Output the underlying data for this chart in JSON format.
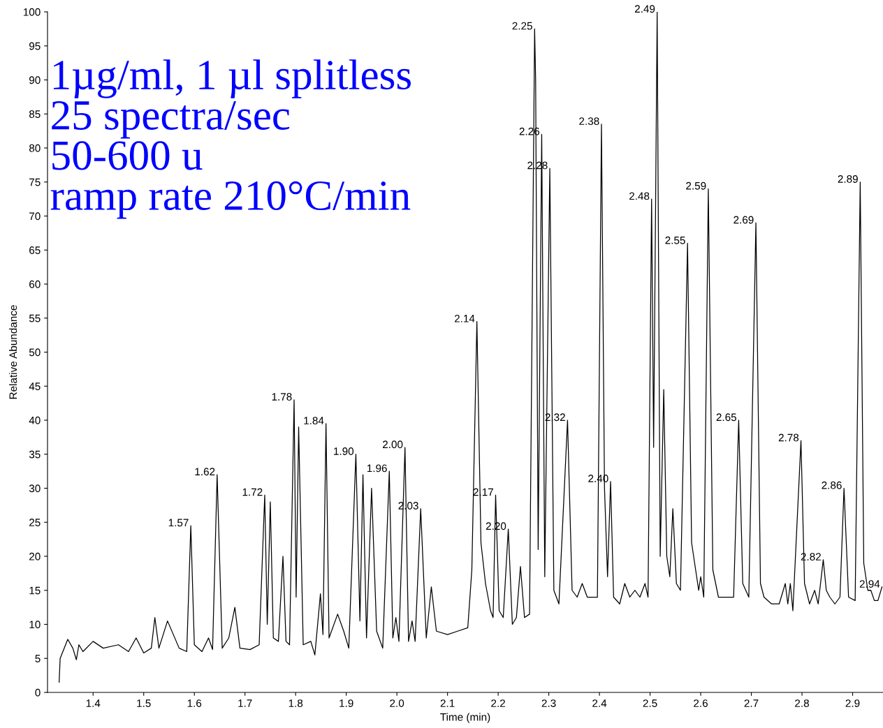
{
  "chart_data": {
    "type": "line",
    "xlabel": "Time (min)",
    "ylabel": "Relative Abundance",
    "xlim": [
      1.31,
      2.96
    ],
    "ylim": [
      0,
      100
    ],
    "xticks": [
      1.4,
      1.5,
      1.6,
      1.7,
      1.8,
      1.9,
      {
        "value": 2.0,
        "label": "2.0"
      },
      2.1,
      2.2,
      2.3,
      2.4,
      2.5,
      2.6,
      2.7,
      2.8,
      2.9
    ],
    "yticks": [
      0,
      5,
      10,
      15,
      20,
      25,
      30,
      35,
      40,
      45,
      50,
      55,
      60,
      65,
      70,
      75,
      80,
      85,
      90,
      95,
      100
    ],
    "grid": false,
    "legend": false,
    "series": [
      {
        "color": "#000000",
        "x": [
          1.333,
          1.335,
          1.35,
          1.36,
          1.367,
          1.372,
          1.38,
          1.4,
          1.42,
          1.45,
          1.47,
          1.485,
          1.5,
          1.515,
          1.522,
          1.53,
          1.547,
          1.57,
          1.585,
          1.593,
          1.6,
          1.615,
          1.628,
          1.636,
          1.645,
          1.655,
          1.668,
          1.68,
          1.69,
          1.71,
          1.728,
          1.739,
          1.744,
          1.75,
          1.756,
          1.766,
          1.775,
          1.781,
          1.788,
          1.797,
          1.801,
          1.806,
          1.815,
          1.83,
          1.838,
          1.849,
          1.854,
          1.86,
          1.866,
          1.883,
          1.895,
          1.905,
          1.919,
          1.927,
          1.933,
          1.94,
          1.95,
          1.96,
          1.972,
          1.985,
          1.992,
          1.998,
          2.004,
          2.016,
          2.023,
          2.03,
          2.036,
          2.047,
          2.058,
          2.068,
          2.078,
          2.1,
          2.12,
          2.14,
          2.148,
          2.158,
          2.166,
          2.175,
          2.185,
          2.19,
          2.195,
          2.202,
          2.21,
          2.22,
          2.228,
          2.236,
          2.244,
          2.252,
          2.262,
          2.272,
          2.274,
          2.279,
          2.286,
          2.292,
          2.302,
          2.31,
          2.32,
          2.337,
          2.346,
          2.356,
          2.366,
          2.376,
          2.39,
          2.396,
          2.404,
          2.41,
          2.416,
          2.422,
          2.428,
          2.44,
          2.45,
          2.46,
          2.47,
          2.48,
          2.49,
          2.496,
          2.503,
          2.507,
          2.514,
          2.52,
          2.527,
          2.533,
          2.539,
          2.545,
          2.552,
          2.56,
          2.574,
          2.582,
          2.588,
          2.596,
          2.6,
          2.606,
          2.615,
          2.624,
          2.635,
          2.645,
          2.655,
          2.665,
          2.675,
          2.683,
          2.695,
          2.709,
          2.718,
          2.725,
          2.74,
          2.755,
          2.767,
          2.772,
          2.777,
          2.782,
          2.798,
          2.805,
          2.815,
          2.825,
          2.832,
          2.842,
          2.848,
          2.855,
          2.865,
          2.875,
          2.883,
          2.892,
          2.905,
          2.915,
          2.922,
          2.93,
          2.936,
          2.943,
          2.95,
          2.958
        ],
        "values": [
          1.5,
          5,
          7.8,
          6.5,
          4.8,
          7,
          6,
          7.5,
          6.5,
          7,
          6,
          8,
          5.8,
          6.5,
          11,
          6.5,
          10.5,
          6.5,
          6,
          24.5,
          7,
          6,
          8,
          6.3,
          32,
          6.5,
          8,
          12.5,
          6.5,
          6.3,
          7,
          29,
          10,
          28,
          8,
          7.5,
          20,
          7.5,
          7,
          43,
          14,
          39,
          7,
          7.5,
          5.5,
          14.5,
          8.5,
          39.5,
          8,
          11.5,
          9,
          6.5,
          35,
          10.5,
          32,
          8,
          30,
          9,
          6.5,
          32.5,
          8,
          11,
          7.5,
          36,
          7.5,
          10.5,
          7.5,
          27,
          8,
          15.5,
          9,
          8.5,
          9,
          9.5,
          18,
          54.5,
          22,
          16,
          12,
          11,
          29,
          12,
          11,
          24,
          10,
          11,
          18.5,
          11,
          11.5,
          97.5,
          90,
          21,
          82,
          17,
          77,
          15,
          13,
          40,
          15,
          14,
          16,
          14,
          14,
          14,
          83.5,
          30,
          17,
          31,
          14,
          13,
          16,
          14,
          15,
          14,
          16,
          14,
          72.5,
          36,
          100,
          20,
          44.5,
          20,
          17,
          27,
          16,
          15,
          66,
          22,
          19,
          15,
          17,
          14,
          74,
          18,
          14,
          14,
          14,
          14,
          40,
          16,
          14,
          69,
          16,
          14,
          13,
          13,
          16,
          13,
          16,
          12,
          37,
          16,
          13,
          15,
          13,
          19.5,
          15,
          14,
          13,
          14,
          30,
          14,
          13.5,
          75,
          19,
          15,
          15,
          13.5,
          13.5,
          15.5
        ]
      }
    ],
    "annotations": [
      "1µg/ml, 1 µl splitless\n25 spectra/sec\n50-600 u\nramp rate 210°C/min",
      {
        "text": "1.57",
        "x": 1.593,
        "y": 24.5
      },
      {
        "text": "1.62",
        "x": 1.645,
        "y": 32
      },
      {
        "text": "1.72",
        "x": 1.739,
        "y": 29
      },
      {
        "text": "1.78",
        "x": 1.797,
        "y": 43
      },
      {
        "text": "1.84",
        "x": 1.86,
        "y": 39.5
      },
      {
        "text": "1.90",
        "x": 1.919,
        "y": 35
      },
      {
        "text": "1.96",
        "x": 1.985,
        "y": 32.5
      },
      {
        "text": "2.00",
        "x": 2.016,
        "y": 36
      },
      {
        "text": "2.03",
        "x": 2.047,
        "y": 27
      },
      {
        "text": "2.14",
        "x": 2.158,
        "y": 54.5
      },
      {
        "text": "2.17",
        "x": 2.195,
        "y": 29
      },
      {
        "text": "2.20",
        "x": 2.22,
        "y": 24
      },
      {
        "text": "2.25",
        "x": 2.272,
        "y": 97.5
      },
      {
        "text": "2.26",
        "x": 2.286,
        "y": 82
      },
      {
        "text": "2.28",
        "x": 2.302,
        "y": 77
      },
      {
        "text": "2.32",
        "x": 2.337,
        "y": 40
      },
      {
        "text": "2.38",
        "x": 2.404,
        "y": 83.5
      },
      {
        "text": "2.40",
        "x": 2.422,
        "y": 31
      },
      {
        "text": "2.48",
        "x": 2.503,
        "y": 72.5
      },
      {
        "text": "2.49",
        "x": 2.514,
        "y": 100
      },
      {
        "text": "2.55",
        "x": 2.574,
        "y": 66
      },
      {
        "text": "2.59",
        "x": 2.615,
        "y": 74
      },
      {
        "text": "2.65",
        "x": 2.675,
        "y": 40
      },
      {
        "text": "2.69",
        "x": 2.709,
        "y": 69
      },
      {
        "text": "2.78",
        "x": 2.798,
        "y": 37
      },
      {
        "text": "2.82",
        "x": 2.842,
        "y": 19.5
      },
      {
        "text": "2.86",
        "x": 2.883,
        "y": 30
      },
      {
        "text": "2.89",
        "x": 2.915,
        "y": 75
      },
      {
        "text": "2.94",
        "x": 2.958,
        "y": 15.5
      }
    ]
  }
}
